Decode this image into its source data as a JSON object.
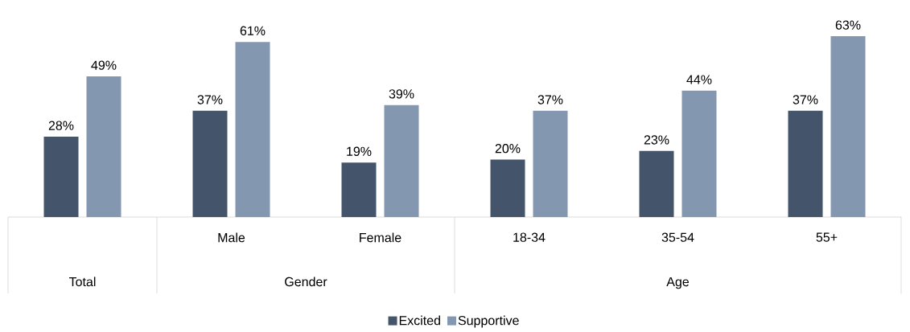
{
  "chart_data": {
    "type": "bar",
    "categories": [
      null,
      "Male",
      "Female",
      "18-34",
      "35-54",
      "55+"
    ],
    "series": [
      {
        "name": "Excited",
        "color": "#44546a",
        "values": [
          28,
          37,
          19,
          20,
          23,
          37
        ],
        "value_labels": [
          "28%",
          "37%",
          "19%",
          "20%",
          "23%",
          "37%"
        ]
      },
      {
        "name": "Supportive",
        "color": "#8497b0",
        "values": [
          49,
          61,
          39,
          37,
          44,
          63
        ],
        "value_labels": [
          "49%",
          "61%",
          "39%",
          "37%",
          "44%",
          "63%"
        ]
      }
    ],
    "annotations": [
      "Total",
      "Gender",
      "Age"
    ],
    "legend": "bottom"
  }
}
